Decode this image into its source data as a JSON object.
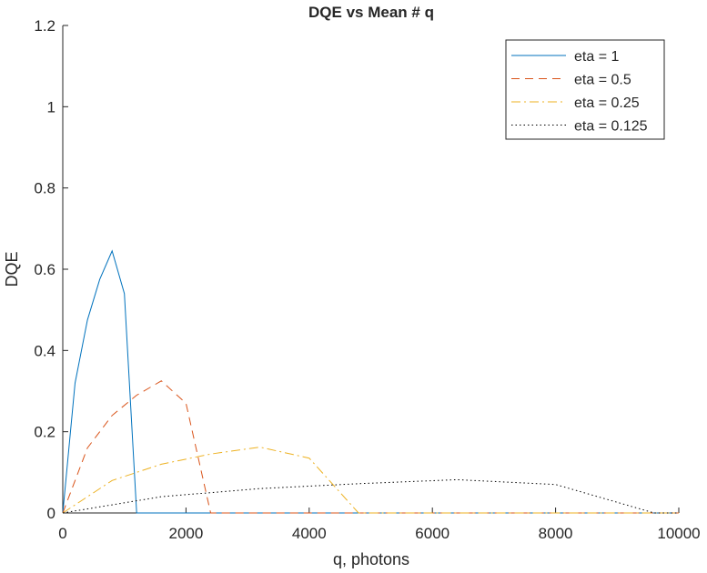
{
  "chart_data": {
    "type": "line",
    "title": "DQE vs Mean # q",
    "xlabel": "q, photons",
    "ylabel": "DQE",
    "xlim": [
      0,
      10000
    ],
    "ylim": [
      0,
      1.2
    ],
    "x_ticks": [
      0,
      2000,
      4000,
      6000,
      8000,
      10000
    ],
    "y_ticks": [
      0,
      0.2,
      0.4,
      0.6,
      0.8,
      1,
      1.2
    ],
    "x_tick_labels": [
      "0",
      "2000",
      "4000",
      "6000",
      "8000",
      "10000"
    ],
    "y_tick_labels": [
      "0",
      "0.2",
      "0.4",
      "0.6",
      "0.8",
      "1",
      "1.2"
    ],
    "grid": false,
    "legend_position": "top-right",
    "series": [
      {
        "name": "eta = 1",
        "color": "#0072BD",
        "style": "solid",
        "x": [
          0,
          200,
          400,
          600,
          800,
          1000,
          1200,
          10000
        ],
        "y": [
          0,
          0.32,
          0.475,
          0.575,
          0.645,
          0.54,
          0,
          0
        ]
      },
      {
        "name": "eta = 0.5",
        "color": "#D95319",
        "style": "dashed",
        "x": [
          0,
          400,
          800,
          1200,
          1600,
          2000,
          2400,
          10000
        ],
        "y": [
          0,
          0.16,
          0.24,
          0.29,
          0.325,
          0.27,
          0,
          0
        ]
      },
      {
        "name": "eta = 0.25",
        "color": "#EDB120",
        "style": "dashdot",
        "x": [
          0,
          800,
          1600,
          2400,
          3200,
          4000,
          4800,
          10000
        ],
        "y": [
          0,
          0.08,
          0.12,
          0.145,
          0.162,
          0.135,
          0,
          0
        ]
      },
      {
        "name": "eta = 0.125",
        "color": "#000000",
        "style": "dotted",
        "x": [
          0,
          1600,
          3200,
          4800,
          6400,
          8000,
          9600,
          10000
        ],
        "y": [
          0,
          0.04,
          0.06,
          0.072,
          0.082,
          0.07,
          0,
          0
        ]
      }
    ]
  }
}
